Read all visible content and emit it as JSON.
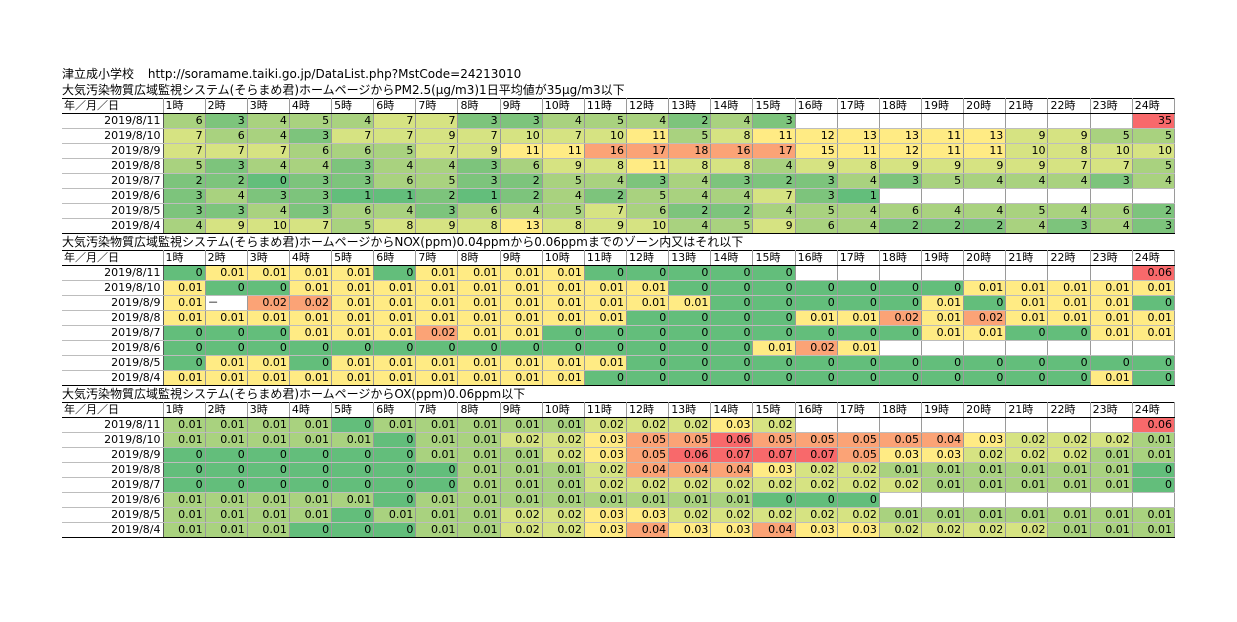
{
  "page": {
    "school": "津立成小学校",
    "url": "http://soramame.taiki.go.jp/DataList.php?MstCode=24213010"
  },
  "hours": [
    "1時",
    "2時",
    "3時",
    "4時",
    "5時",
    "6時",
    "7時",
    "8時",
    "9時",
    "10時",
    "11時",
    "12時",
    "13時",
    "14時",
    "15時",
    "16時",
    "17時",
    "18時",
    "19時",
    "20時",
    "21時",
    "22時",
    "23時",
    "24時"
  ],
  "date_header": "年／月／日",
  "colors": {
    "red": "#f8696b",
    "orange": "#fba376",
    "yellow": "#ffeb84",
    "light_green": "#d6e382",
    "mid_green": "#a9d27f",
    "green": "#7dc47c",
    "dark_green": "#63be7b"
  },
  "sections": [
    {
      "title": "大気汚染物質広域監視システム(そらまめ君)ホームページからPM2.5(μg/m3)1日平均値が35μg/m3以下",
      "rows": [
        {
          "date": "2019/8/11",
          "values": [
            "6",
            "3",
            "4",
            "5",
            "4",
            "7",
            "7",
            "3",
            "3",
            "4",
            "5",
            "4",
            "2",
            "4",
            "3",
            "",
            "",
            "",
            "",
            "",
            "",
            "",
            "",
            "35"
          ]
        },
        {
          "date": "2019/8/10",
          "values": [
            "7",
            "6",
            "4",
            "3",
            "7",
            "7",
            "9",
            "7",
            "10",
            "7",
            "10",
            "11",
            "5",
            "8",
            "11",
            "12",
            "13",
            "13",
            "11",
            "13",
            "9",
            "9",
            "5",
            "5"
          ]
        },
        {
          "date": "2019/8/9",
          "values": [
            "7",
            "7",
            "7",
            "6",
            "6",
            "5",
            "7",
            "9",
            "11",
            "11",
            "16",
            "17",
            "18",
            "16",
            "17",
            "15",
            "11",
            "12",
            "11",
            "11",
            "10",
            "8",
            "10",
            "10"
          ]
        },
        {
          "date": "2019/8/8",
          "values": [
            "5",
            "3",
            "4",
            "4",
            "3",
            "4",
            "4",
            "3",
            "6",
            "9",
            "8",
            "11",
            "8",
            "8",
            "4",
            "9",
            "8",
            "9",
            "9",
            "9",
            "9",
            "7",
            "7",
            "5"
          ]
        },
        {
          "date": "2019/8/7",
          "values": [
            "2",
            "2",
            "0",
            "3",
            "3",
            "6",
            "5",
            "3",
            "2",
            "5",
            "4",
            "3",
            "4",
            "3",
            "2",
            "3",
            "4",
            "3",
            "5",
            "4",
            "4",
            "4",
            "3",
            "4"
          ]
        },
        {
          "date": "2019/8/6",
          "values": [
            "3",
            "4",
            "3",
            "3",
            "1",
            "1",
            "2",
            "1",
            "2",
            "4",
            "2",
            "5",
            "4",
            "4",
            "7",
            "3",
            "1",
            "",
            "",
            "",
            "",
            "",
            "",
            ""
          ]
        },
        {
          "date": "2019/8/5",
          "values": [
            "3",
            "3",
            "4",
            "3",
            "6",
            "4",
            "3",
            "6",
            "4",
            "5",
            "7",
            "6",
            "2",
            "2",
            "4",
            "5",
            "4",
            "6",
            "4",
            "4",
            "5",
            "4",
            "6",
            "2"
          ]
        },
        {
          "date": "2019/8/4",
          "values": [
            "4",
            "9",
            "10",
            "7",
            "5",
            "8",
            "9",
            "8",
            "13",
            "8",
            "9",
            "10",
            "4",
            "5",
            "9",
            "6",
            "4",
            "2",
            "2",
            "2",
            "4",
            "3",
            "4",
            "3"
          ]
        }
      ]
    },
    {
      "title": "大気汚染物質広域監視システム(そらまめ君)ホームページからNOX(ppm)0.04ppmから0.06ppmまでのゾーン内又はそれ以下",
      "rows": [
        {
          "date": "2019/8/11",
          "values": [
            "0",
            "0.01",
            "0.01",
            "0.01",
            "0.01",
            "0",
            "0.01",
            "0.01",
            "0.01",
            "0.01",
            "0",
            "0",
            "0",
            "0",
            "0",
            "",
            "",
            "",
            "",
            "",
            "",
            "",
            "",
            "0.06"
          ]
        },
        {
          "date": "2019/8/10",
          "values": [
            "0.01",
            "0",
            "0",
            "0.01",
            "0.01",
            "0.01",
            "0.01",
            "0.01",
            "0.01",
            "0.01",
            "0.01",
            "0.01",
            "0",
            "0",
            "0",
            "0",
            "0",
            "0",
            "0",
            "0.01",
            "0.01",
            "0.01",
            "0.01",
            "0.01"
          ]
        },
        {
          "date": "2019/8/9",
          "values": [
            "0.01",
            "－",
            "0.02",
            "0.02",
            "0.01",
            "0.01",
            "0.01",
            "0.01",
            "0.01",
            "0.01",
            "0.01",
            "0.01",
            "0.01",
            "0",
            "0",
            "0",
            "0",
            "0",
            "0.01",
            "0",
            "0.01",
            "0.01",
            "0.01",
            "0"
          ]
        },
        {
          "date": "2019/8/8",
          "values": [
            "0.01",
            "0.01",
            "0.01",
            "0.01",
            "0.01",
            "0.01",
            "0.01",
            "0.01",
            "0.01",
            "0.01",
            "0.01",
            "0",
            "0",
            "0",
            "0",
            "0.01",
            "0.01",
            "0.02",
            "0.01",
            "0.02",
            "0.01",
            "0.01",
            "0.01",
            "0.01"
          ]
        },
        {
          "date": "2019/8/7",
          "values": [
            "0",
            "0",
            "0",
            "0.01",
            "0.01",
            "0.01",
            "0.02",
            "0.01",
            "0.01",
            "0",
            "0",
            "0",
            "0",
            "0",
            "0",
            "0",
            "0",
            "0",
            "0.01",
            "0.01",
            "0",
            "0",
            "0.01",
            "0.01"
          ]
        },
        {
          "date": "2019/8/6",
          "values": [
            "0",
            "0",
            "0",
            "0",
            "0",
            "0",
            "0",
            "0",
            "0",
            "0",
            "0",
            "0",
            "0",
            "0",
            "0.01",
            "0.02",
            "0.01",
            "",
            "",
            "",
            "",
            "",
            "",
            ""
          ]
        },
        {
          "date": "2019/8/5",
          "values": [
            "0",
            "0.01",
            "0.01",
            "0",
            "0.01",
            "0.01",
            "0.01",
            "0.01",
            "0.01",
            "0.01",
            "0.01",
            "0",
            "0",
            "0",
            "0",
            "0",
            "0",
            "0",
            "0",
            "0",
            "0",
            "0",
            "0",
            "0"
          ]
        },
        {
          "date": "2019/8/4",
          "values": [
            "0.01",
            "0.01",
            "0.01",
            "0.01",
            "0.01",
            "0.01",
            "0.01",
            "0.01",
            "0.01",
            "0.01",
            "0",
            "0",
            "0",
            "0",
            "0",
            "0",
            "0",
            "0",
            "0",
            "0",
            "0",
            "0",
            "0.01",
            "0"
          ]
        }
      ]
    },
    {
      "title": "大気汚染物質広域監視システム(そらまめ君)ホームページからOX(ppm)0.06ppm以下",
      "rows": [
        {
          "date": "2019/8/11",
          "values": [
            "0.01",
            "0.01",
            "0.01",
            "0.01",
            "0",
            "0.01",
            "0.01",
            "0.01",
            "0.01",
            "0.01",
            "0.02",
            "0.02",
            "0.02",
            "0.03",
            "0.02",
            "",
            "",
            "",
            "",
            "",
            "",
            "",
            "",
            "0.06"
          ]
        },
        {
          "date": "2019/8/10",
          "values": [
            "0.01",
            "0.01",
            "0.01",
            "0.01",
            "0.01",
            "0",
            "0.01",
            "0.01",
            "0.02",
            "0.02",
            "0.03",
            "0.05",
            "0.05",
            "0.06",
            "0.05",
            "0.05",
            "0.05",
            "0.05",
            "0.04",
            "0.03",
            "0.02",
            "0.02",
            "0.02",
            "0.01"
          ]
        },
        {
          "date": "2019/8/9",
          "values": [
            "0",
            "0",
            "0",
            "0",
            "0",
            "0",
            "0.01",
            "0.01",
            "0.01",
            "0.02",
            "0.03",
            "0.05",
            "0.06",
            "0.07",
            "0.07",
            "0.07",
            "0.05",
            "0.03",
            "0.03",
            "0.02",
            "0.02",
            "0.02",
            "0.01",
            "0.01"
          ]
        },
        {
          "date": "2019/8/8",
          "values": [
            "0",
            "0",
            "0",
            "0",
            "0",
            "0",
            "0",
            "0.01",
            "0.01",
            "0.01",
            "0.02",
            "0.04",
            "0.04",
            "0.04",
            "0.03",
            "0.02",
            "0.02",
            "0.01",
            "0.01",
            "0.01",
            "0.01",
            "0.01",
            "0.01",
            "0"
          ]
        },
        {
          "date": "2019/8/7",
          "values": [
            "0",
            "0",
            "0",
            "0",
            "0",
            "0",
            "0",
            "0.01",
            "0.01",
            "0.01",
            "0.02",
            "0.02",
            "0.02",
            "0.02",
            "0.02",
            "0.02",
            "0.02",
            "0.02",
            "0.01",
            "0.01",
            "0.01",
            "0.01",
            "0.01",
            "0"
          ]
        },
        {
          "date": "2019/8/6",
          "values": [
            "0.01",
            "0.01",
            "0.01",
            "0.01",
            "0.01",
            "0",
            "0.01",
            "0.01",
            "0.01",
            "0.01",
            "0.01",
            "0.01",
            "0.01",
            "0.01",
            "0",
            "0",
            "0",
            "",
            "",
            "",
            "",
            "",
            "",
            ""
          ]
        },
        {
          "date": "2019/8/5",
          "values": [
            "0.01",
            "0.01",
            "0.01",
            "0.01",
            "0",
            "0.01",
            "0.01",
            "0.01",
            "0.02",
            "0.02",
            "0.03",
            "0.03",
            "0.02",
            "0.02",
            "0.02",
            "0.02",
            "0.02",
            "0.01",
            "0.01",
            "0.01",
            "0.01",
            "0.01",
            "0.01",
            "0.01"
          ]
        },
        {
          "date": "2019/8/4",
          "values": [
            "0.01",
            "0.01",
            "0.01",
            "0",
            "0",
            "0",
            "0.01",
            "0.01",
            "0.02",
            "0.02",
            "0.03",
            "0.04",
            "0.03",
            "0.03",
            "0.04",
            "0.03",
            "0.03",
            "0.02",
            "0.02",
            "0.02",
            "0.02",
            "0.01",
            "0.01",
            "0.01"
          ]
        }
      ]
    }
  ]
}
